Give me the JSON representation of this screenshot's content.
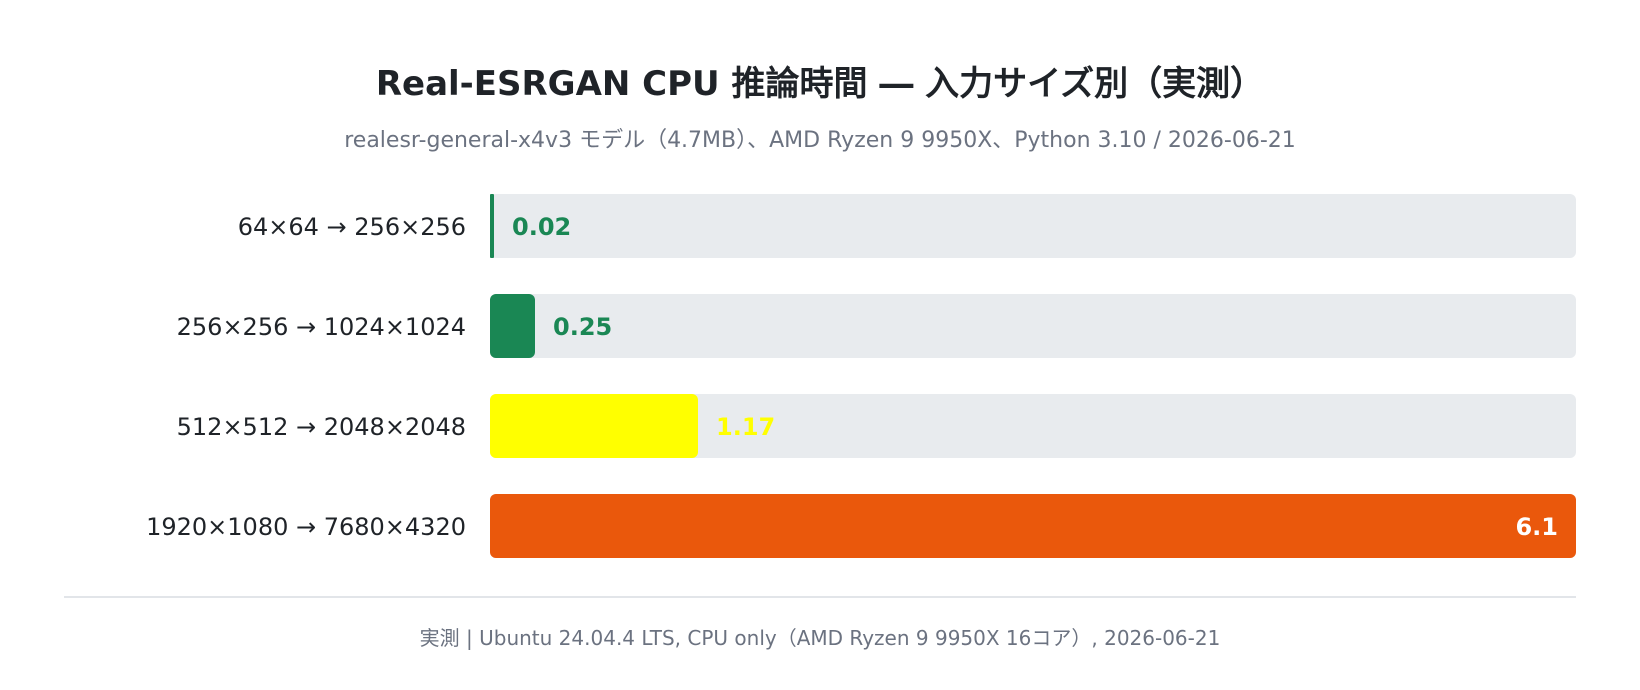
{
  "chart_data": {
    "type": "bar",
    "orientation": "horizontal",
    "title": "Real-ESRGAN CPU 推論時間 ― 入力サイズ別（実測）",
    "subtitle": "realesr-general-x4v3 モデル（4.7MB）、AMD Ryzen 9 9950X、Python 3.10 / 2026-06-21",
    "categories": [
      "64×64 → 256×256",
      "256×256 → 1024×1024",
      "512×512 → 2048×2048",
      "1920×1080 → 7680×4320"
    ],
    "values": [
      0.02,
      0.25,
      1.17,
      6.1
    ],
    "value_labels": [
      "0.02",
      "0.25",
      "1.17",
      "6.1"
    ],
    "bar_colors": [
      "#1a8754",
      "#1a8754",
      "#ffff00",
      "#ea580c"
    ],
    "track_color": "#e8ebee",
    "xlim": [
      0,
      6.1
    ],
    "grid": false,
    "legend": "none"
  },
  "footer": "実測 | Ubuntu 24.04.4 LTS, CPU only（AMD Ryzen 9 9950X 16コア）, 2026-06-21"
}
